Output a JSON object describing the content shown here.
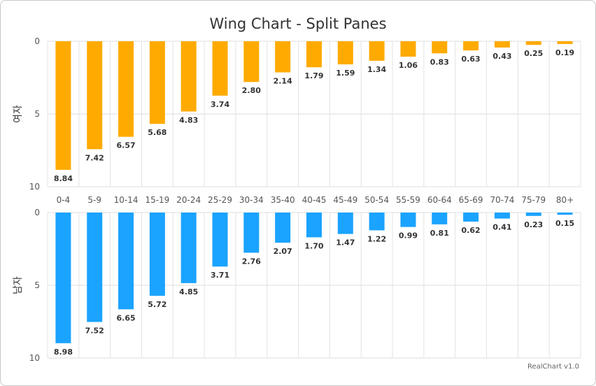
{
  "chart_data": {
    "type": "bar",
    "title": "Wing Chart - Split Panes",
    "categories": [
      "0-4",
      "5-9",
      "10-14",
      "15-19",
      "20-24",
      "25-29",
      "30-34",
      "35-40",
      "40-45",
      "45-49",
      "50-54",
      "55-59",
      "60-64",
      "65-69",
      "70-74",
      "75-79",
      "80+"
    ],
    "ylim": [
      0,
      10
    ],
    "yticks": [
      "0",
      "5",
      "10"
    ],
    "grid": true,
    "series": [
      {
        "name": "여자",
        "color": "#ffaa00",
        "values": [
          8.84,
          7.42,
          6.57,
          5.68,
          4.83,
          3.74,
          2.8,
          2.14,
          1.79,
          1.59,
          1.34,
          1.06,
          0.83,
          0.63,
          0.43,
          0.25,
          0.19
        ],
        "labels": [
          "8.84",
          "7.42",
          "6.57",
          "5.68",
          "4.83",
          "3.74",
          "2.80",
          "2.14",
          "1.79",
          "1.59",
          "1.34",
          "1.06",
          "0.83",
          "0.63",
          "0.43",
          "0.25",
          "0.19"
        ]
      },
      {
        "name": "남자",
        "color": "#1aa3ff",
        "values": [
          8.98,
          7.52,
          6.65,
          5.72,
          4.85,
          3.71,
          2.76,
          2.07,
          1.7,
          1.47,
          1.22,
          0.99,
          0.81,
          0.62,
          0.41,
          0.23,
          0.15
        ],
        "labels": [
          "8.98",
          "7.52",
          "6.65",
          "5.72",
          "4.85",
          "3.71",
          "2.76",
          "2.07",
          "1.70",
          "1.47",
          "1.22",
          "0.99",
          "0.81",
          "0.62",
          "0.41",
          "0.23",
          "0.15"
        ]
      }
    ]
  },
  "credit": "RealChart v1.0"
}
